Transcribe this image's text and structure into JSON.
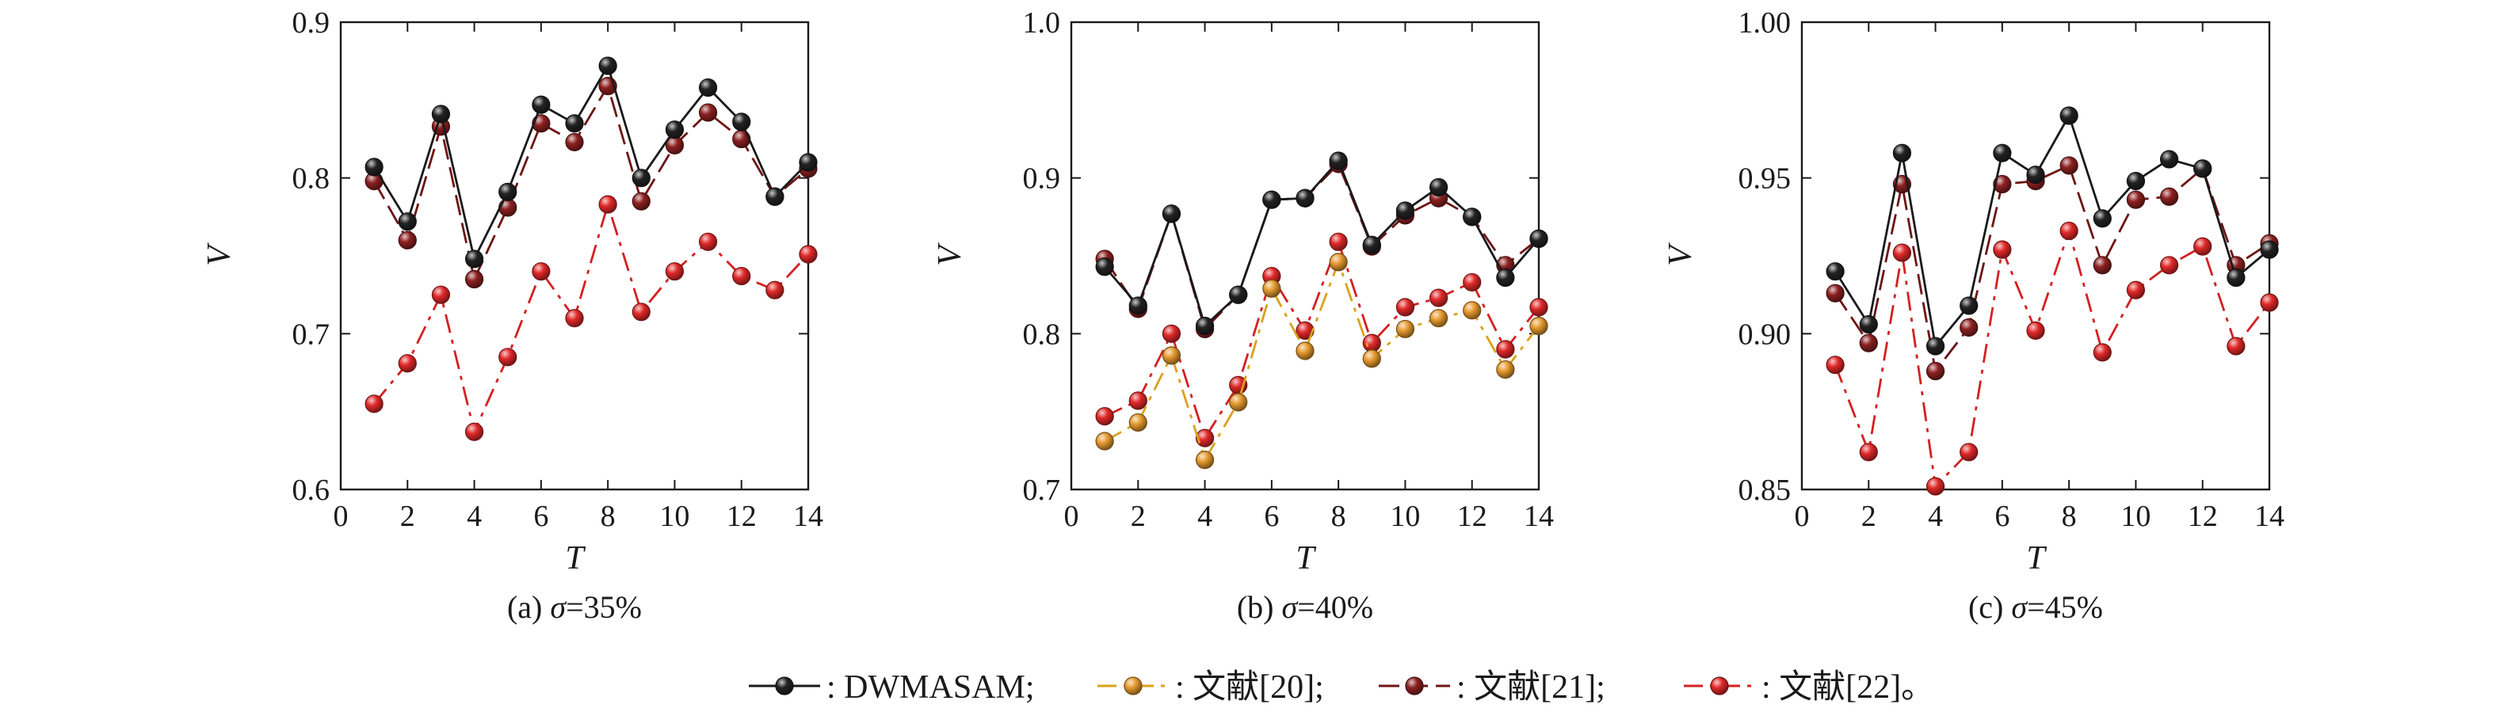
{
  "series_styles": [
    {
      "key": "dwmasam",
      "line_color": "#1a1a1a",
      "marker_color": "#222222",
      "dash": "solid",
      "z": 4
    },
    {
      "key": "ref21",
      "line_color": "#6e1414",
      "marker_color": "#8c2020",
      "dash": "long-dash",
      "z": 3
    },
    {
      "key": "ref20",
      "line_color": "#d9a21a",
      "marker_color": "#e59a2e",
      "dash": "dash-dot",
      "z": 2
    },
    {
      "key": "ref22",
      "line_color": "#d42020",
      "marker_color": "#e02828",
      "dash": "dash-dot",
      "z": 1
    }
  ],
  "legend": {
    "items": [
      {
        "key": "dwmasam",
        "label": ": DWMASAM;"
      },
      {
        "key": "ref20",
        "label": ": 文献[20];"
      },
      {
        "key": "ref21",
        "label": ": 文献[21];"
      },
      {
        "key": "ref22",
        "label": ": 文献[22]。"
      }
    ]
  },
  "chart_data": [
    {
      "type": "line",
      "caption_prefix": "(a) ",
      "caption_symbol": "σ",
      "caption_value": "=35%",
      "xlabel": "T",
      "ylabel": "V",
      "x": [
        1,
        2,
        3,
        4,
        5,
        6,
        7,
        8,
        9,
        10,
        11,
        12,
        13,
        14
      ],
      "xlim": [
        0,
        14
      ],
      "xticks": [
        0,
        2,
        4,
        6,
        8,
        10,
        12,
        14
      ],
      "ylim": [
        0.6,
        0.9
      ],
      "yticks": [
        0.6,
        0.7,
        0.8,
        0.9
      ],
      "ytick_labels": [
        "0.6",
        "0.7",
        "0.8",
        "0.9"
      ],
      "series": [
        {
          "key": "ref22",
          "name": "文献[22]",
          "values": [
            0.655,
            0.681,
            0.725,
            0.637,
            0.685,
            0.74,
            0.71,
            0.783,
            0.714,
            0.74,
            0.759,
            0.737,
            0.728,
            0.751
          ]
        },
        {
          "key": "ref21",
          "name": "文献[21]",
          "values": [
            0.798,
            0.76,
            0.833,
            0.735,
            0.781,
            0.835,
            0.823,
            0.859,
            0.785,
            0.821,
            0.842,
            0.825,
            0.788,
            0.806
          ]
        },
        {
          "key": "dwmasam",
          "name": "DWMASAM",
          "values": [
            0.807,
            0.772,
            0.841,
            0.748,
            0.791,
            0.847,
            0.835,
            0.872,
            0.8,
            0.831,
            0.858,
            0.836,
            0.788,
            0.81
          ]
        }
      ]
    },
    {
      "type": "line",
      "caption_prefix": "(b) ",
      "caption_symbol": "σ",
      "caption_value": "=40%",
      "xlabel": "T",
      "ylabel": "V",
      "x": [
        1,
        2,
        3,
        4,
        5,
        6,
        7,
        8,
        9,
        10,
        11,
        12,
        13,
        14
      ],
      "xlim": [
        0,
        14
      ],
      "xticks": [
        0,
        2,
        4,
        6,
        8,
        10,
        12,
        14
      ],
      "ylim": [
        0.7,
        1.0
      ],
      "yticks": [
        0.7,
        0.8,
        0.9,
        1.0
      ],
      "ytick_labels": [
        "0.7",
        "0.8",
        "0.9",
        "1.0"
      ],
      "series": [
        {
          "key": "ref20",
          "name": "文献[20]",
          "values": [
            0.731,
            0.743,
            0.786,
            0.719,
            0.756,
            0.829,
            0.789,
            0.846,
            0.784,
            0.803,
            0.81,
            0.815,
            0.777,
            0.805
          ]
        },
        {
          "key": "ref22",
          "name": "文献[22]",
          "values": [
            0.747,
            0.757,
            0.8,
            0.733,
            0.767,
            0.837,
            0.802,
            0.859,
            0.794,
            0.817,
            0.823,
            0.833,
            0.79,
            0.817
          ]
        },
        {
          "key": "ref21",
          "name": "文献[21]",
          "values": [
            0.848,
            0.816,
            0.877,
            0.803,
            0.825,
            0.886,
            0.887,
            0.909,
            0.856,
            0.876,
            0.887,
            0.875,
            0.844,
            0.861
          ]
        },
        {
          "key": "dwmasam",
          "name": "DWMASAM",
          "values": [
            0.843,
            0.818,
            0.877,
            0.805,
            0.825,
            0.886,
            0.887,
            0.911,
            0.857,
            0.879,
            0.894,
            0.875,
            0.836,
            0.861
          ]
        }
      ]
    },
    {
      "type": "line",
      "caption_prefix": "(c) ",
      "caption_symbol": "σ",
      "caption_value": "=45%",
      "xlabel": "T",
      "ylabel": "V",
      "x": [
        1,
        2,
        3,
        4,
        5,
        6,
        7,
        8,
        9,
        10,
        11,
        12,
        13,
        14
      ],
      "xlim": [
        0,
        14
      ],
      "xticks": [
        0,
        2,
        4,
        6,
        8,
        10,
        12,
        14
      ],
      "ylim": [
        0.85,
        1.0
      ],
      "yticks": [
        0.85,
        0.9,
        0.95,
        1.0
      ],
      "ytick_labels": [
        "0.85",
        "0.90",
        "0.95",
        "1.00"
      ],
      "series": [
        {
          "key": "ref22",
          "name": "文献[22]",
          "values": [
            0.89,
            0.862,
            0.926,
            0.851,
            0.862,
            0.927,
            0.901,
            0.933,
            0.894,
            0.914,
            0.922,
            0.928,
            0.896,
            0.91
          ]
        },
        {
          "key": "ref21",
          "name": "文献[21]",
          "values": [
            0.913,
            0.897,
            0.948,
            0.888,
            0.902,
            0.948,
            0.949,
            0.954,
            0.922,
            0.943,
            0.944,
            0.953,
            0.922,
            0.929
          ]
        },
        {
          "key": "dwmasam",
          "name": "DWMASAM",
          "values": [
            0.92,
            0.903,
            0.958,
            0.896,
            0.909,
            0.958,
            0.951,
            0.97,
            0.937,
            0.949,
            0.956,
            0.953,
            0.918,
            0.927
          ]
        }
      ]
    }
  ]
}
